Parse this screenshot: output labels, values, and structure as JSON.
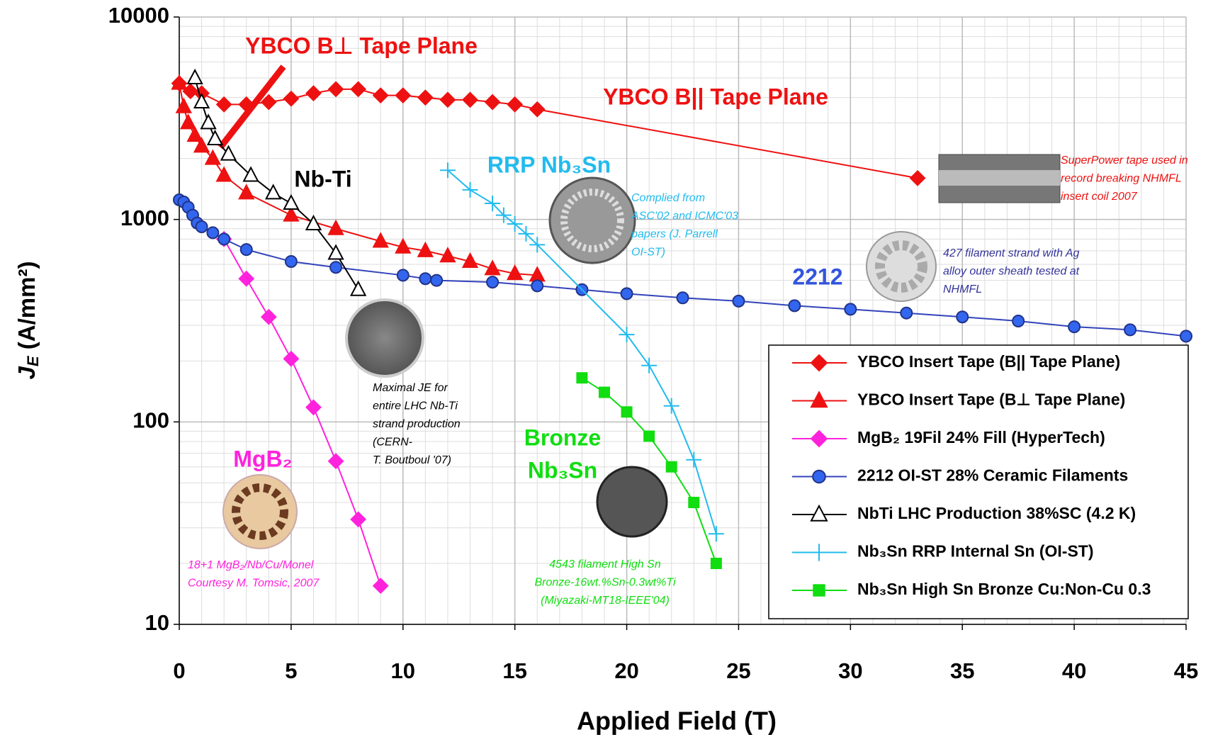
{
  "chart_data": {
    "type": "line",
    "x_label": "Applied Field (T)",
    "y_label": "J",
    "y_label_sub": "E",
    "y_label_unit": " (A/mm²)",
    "xlim": [
      0,
      45
    ],
    "xticks": [
      0,
      5,
      10,
      15,
      20,
      25,
      30,
      35,
      40,
      45
    ],
    "ylim": [
      10,
      10000
    ],
    "yticks": [
      10,
      100,
      1000,
      10000
    ],
    "log_y": true,
    "grid": true,
    "minor_grid": true,
    "legend": "lower right",
    "series": [
      {
        "name": "YBCO Insert Tape (B|| Tape Plane)",
        "color": "#ee1111",
        "marker": "diamond",
        "marker_fill": "#ee1111",
        "x": [
          0,
          0.5,
          1,
          2,
          3,
          4,
          5,
          6,
          7,
          8,
          9,
          10,
          11,
          12,
          13,
          14,
          15,
          16,
          33
        ],
        "values": [
          4700,
          4300,
          4200,
          3700,
          3700,
          3800,
          3950,
          4200,
          4400,
          4400,
          4100,
          4100,
          4000,
          3900,
          3900,
          3800,
          3700,
          3500,
          1600
        ]
      },
      {
        "name": "YBCO Insert Tape (B⊥ Tape Plane)",
        "color": "#ee1111",
        "marker": "triangle",
        "marker_fill": "#ee1111",
        "x": [
          0,
          0.2,
          0.4,
          0.7,
          1,
          1.5,
          2,
          3,
          5,
          7,
          9,
          10,
          11,
          12,
          13,
          14,
          15,
          16
        ],
        "values": [
          4700,
          3600,
          3000,
          2600,
          2300,
          2000,
          1650,
          1350,
          1050,
          900,
          780,
          730,
          700,
          660,
          620,
          570,
          540,
          530
        ]
      },
      {
        "name": "MgB₂ 19Fil 24% Fill (HyperTech)",
        "color": "#ff22dd",
        "marker": "diamond",
        "marker_fill": "#ff22dd",
        "x": [
          2,
          3,
          4,
          5,
          6,
          7,
          8,
          9
        ],
        "values": [
          800,
          510,
          330,
          205,
          118,
          64,
          33,
          15.5
        ]
      },
      {
        "name": "2212 OI-ST 28% Ceramic Filaments",
        "color": "#3344bb",
        "marker": "circle",
        "marker_fill": "#3366ee",
        "x": [
          0,
          0.2,
          0.4,
          0.6,
          0.8,
          1,
          1.5,
          2,
          3,
          5,
          7,
          10,
          11,
          11.5,
          14,
          16,
          18,
          20,
          22.5,
          25,
          27.5,
          30,
          32.5,
          35,
          37.5,
          40,
          42.5,
          45
        ],
        "values": [
          1250,
          1220,
          1150,
          1050,
          960,
          920,
          860,
          800,
          710,
          620,
          580,
          530,
          510,
          500,
          490,
          470,
          450,
          430,
          410,
          395,
          375,
          360,
          345,
          330,
          315,
          295,
          285,
          265
        ]
      },
      {
        "name": "NbTi LHC Production 38%SC (4.2 K)",
        "color": "#000000",
        "marker": "triangle",
        "marker_fill": "#ffffff",
        "x": [
          0.7,
          1,
          1.3,
          1.6,
          2.2,
          3.2,
          4.2,
          5,
          6,
          7,
          8
        ],
        "values": [
          5000,
          3800,
          3000,
          2500,
          2100,
          1650,
          1350,
          1200,
          950,
          680,
          450
        ]
      },
      {
        "name": "Nb₃Sn RRP Internal Sn (OI-ST)",
        "color": "#22bbee",
        "marker": "plus",
        "marker_fill": "#22bbee",
        "x": [
          12,
          13,
          14,
          14.5,
          15,
          15.5,
          16,
          20,
          21,
          22,
          23,
          24
        ],
        "values": [
          1750,
          1400,
          1200,
          1050,
          950,
          850,
          750,
          270,
          190,
          120,
          65,
          28
        ]
      },
      {
        "name": "Nb₃Sn High Sn Bronze Cu:Non-Cu 0.3",
        "color": "#11dd11",
        "marker": "square",
        "marker_fill": "#11dd11",
        "x": [
          18,
          19,
          20,
          21,
          22,
          23,
          24
        ],
        "values": [
          165,
          140,
          112,
          85,
          60,
          40,
          20
        ]
      }
    ],
    "annotations": [
      {
        "lines": [
          "YBCO B⊥ Tape Plane"
        ],
        "color": "#ee1111",
        "style": "label"
      },
      {
        "lines": [
          "YBCO B|| Tape Plane"
        ],
        "color": "#ee1111",
        "style": "label"
      },
      {
        "lines": [
          "Nb-Ti"
        ],
        "color": "#000000",
        "style": "label"
      },
      {
        "lines": [
          "RRP Nb₃Sn"
        ],
        "color": "#22bbee",
        "style": "label"
      },
      {
        "lines": [
          "2212"
        ],
        "color": "#3355dd",
        "style": "label"
      },
      {
        "lines": [
          "MgB₂"
        ],
        "color": "#ff22dd",
        "style": "label"
      },
      {
        "lines": [
          "Bronze",
          "Nb₃Sn"
        ],
        "color": "#11dd11",
        "style": "label"
      },
      {
        "lines": [
          "SuperPower tape used in",
          "record breaking NHMFL",
          "insert coil 2007"
        ],
        "color": "#ee1111",
        "style": "note"
      },
      {
        "lines": [
          "Complied from",
          "ASC'02 and ICMC'03",
          "papers (J. Parrell",
          "OI-ST)"
        ],
        "color": "#22bbee",
        "style": "note"
      },
      {
        "lines": [
          "427 filament strand with Ag",
          "alloy outer sheath tested at",
          "NHMFL"
        ],
        "color": "#333399",
        "style": "note"
      },
      {
        "lines": [
          "Maximal JE for",
          "entire LHC Nb-Ti",
          "strand production",
          "(CERN-",
          "T. Boutboul '07)"
        ],
        "color": "#000000",
        "style": "note"
      },
      {
        "lines": [
          "18+1 MgB₂/Nb/Cu/Monel",
          "Courtesy M. Tomsic, 2007"
        ],
        "color": "#ff22dd",
        "style": "note"
      },
      {
        "lines": [
          "4543 filament High Sn",
          "Bronze-16wt.%Sn-0.3wt%Ti",
          "(Miyazaki-MT18-IEEE'04)"
        ],
        "color": "#11dd11",
        "style": "note"
      }
    ]
  }
}
